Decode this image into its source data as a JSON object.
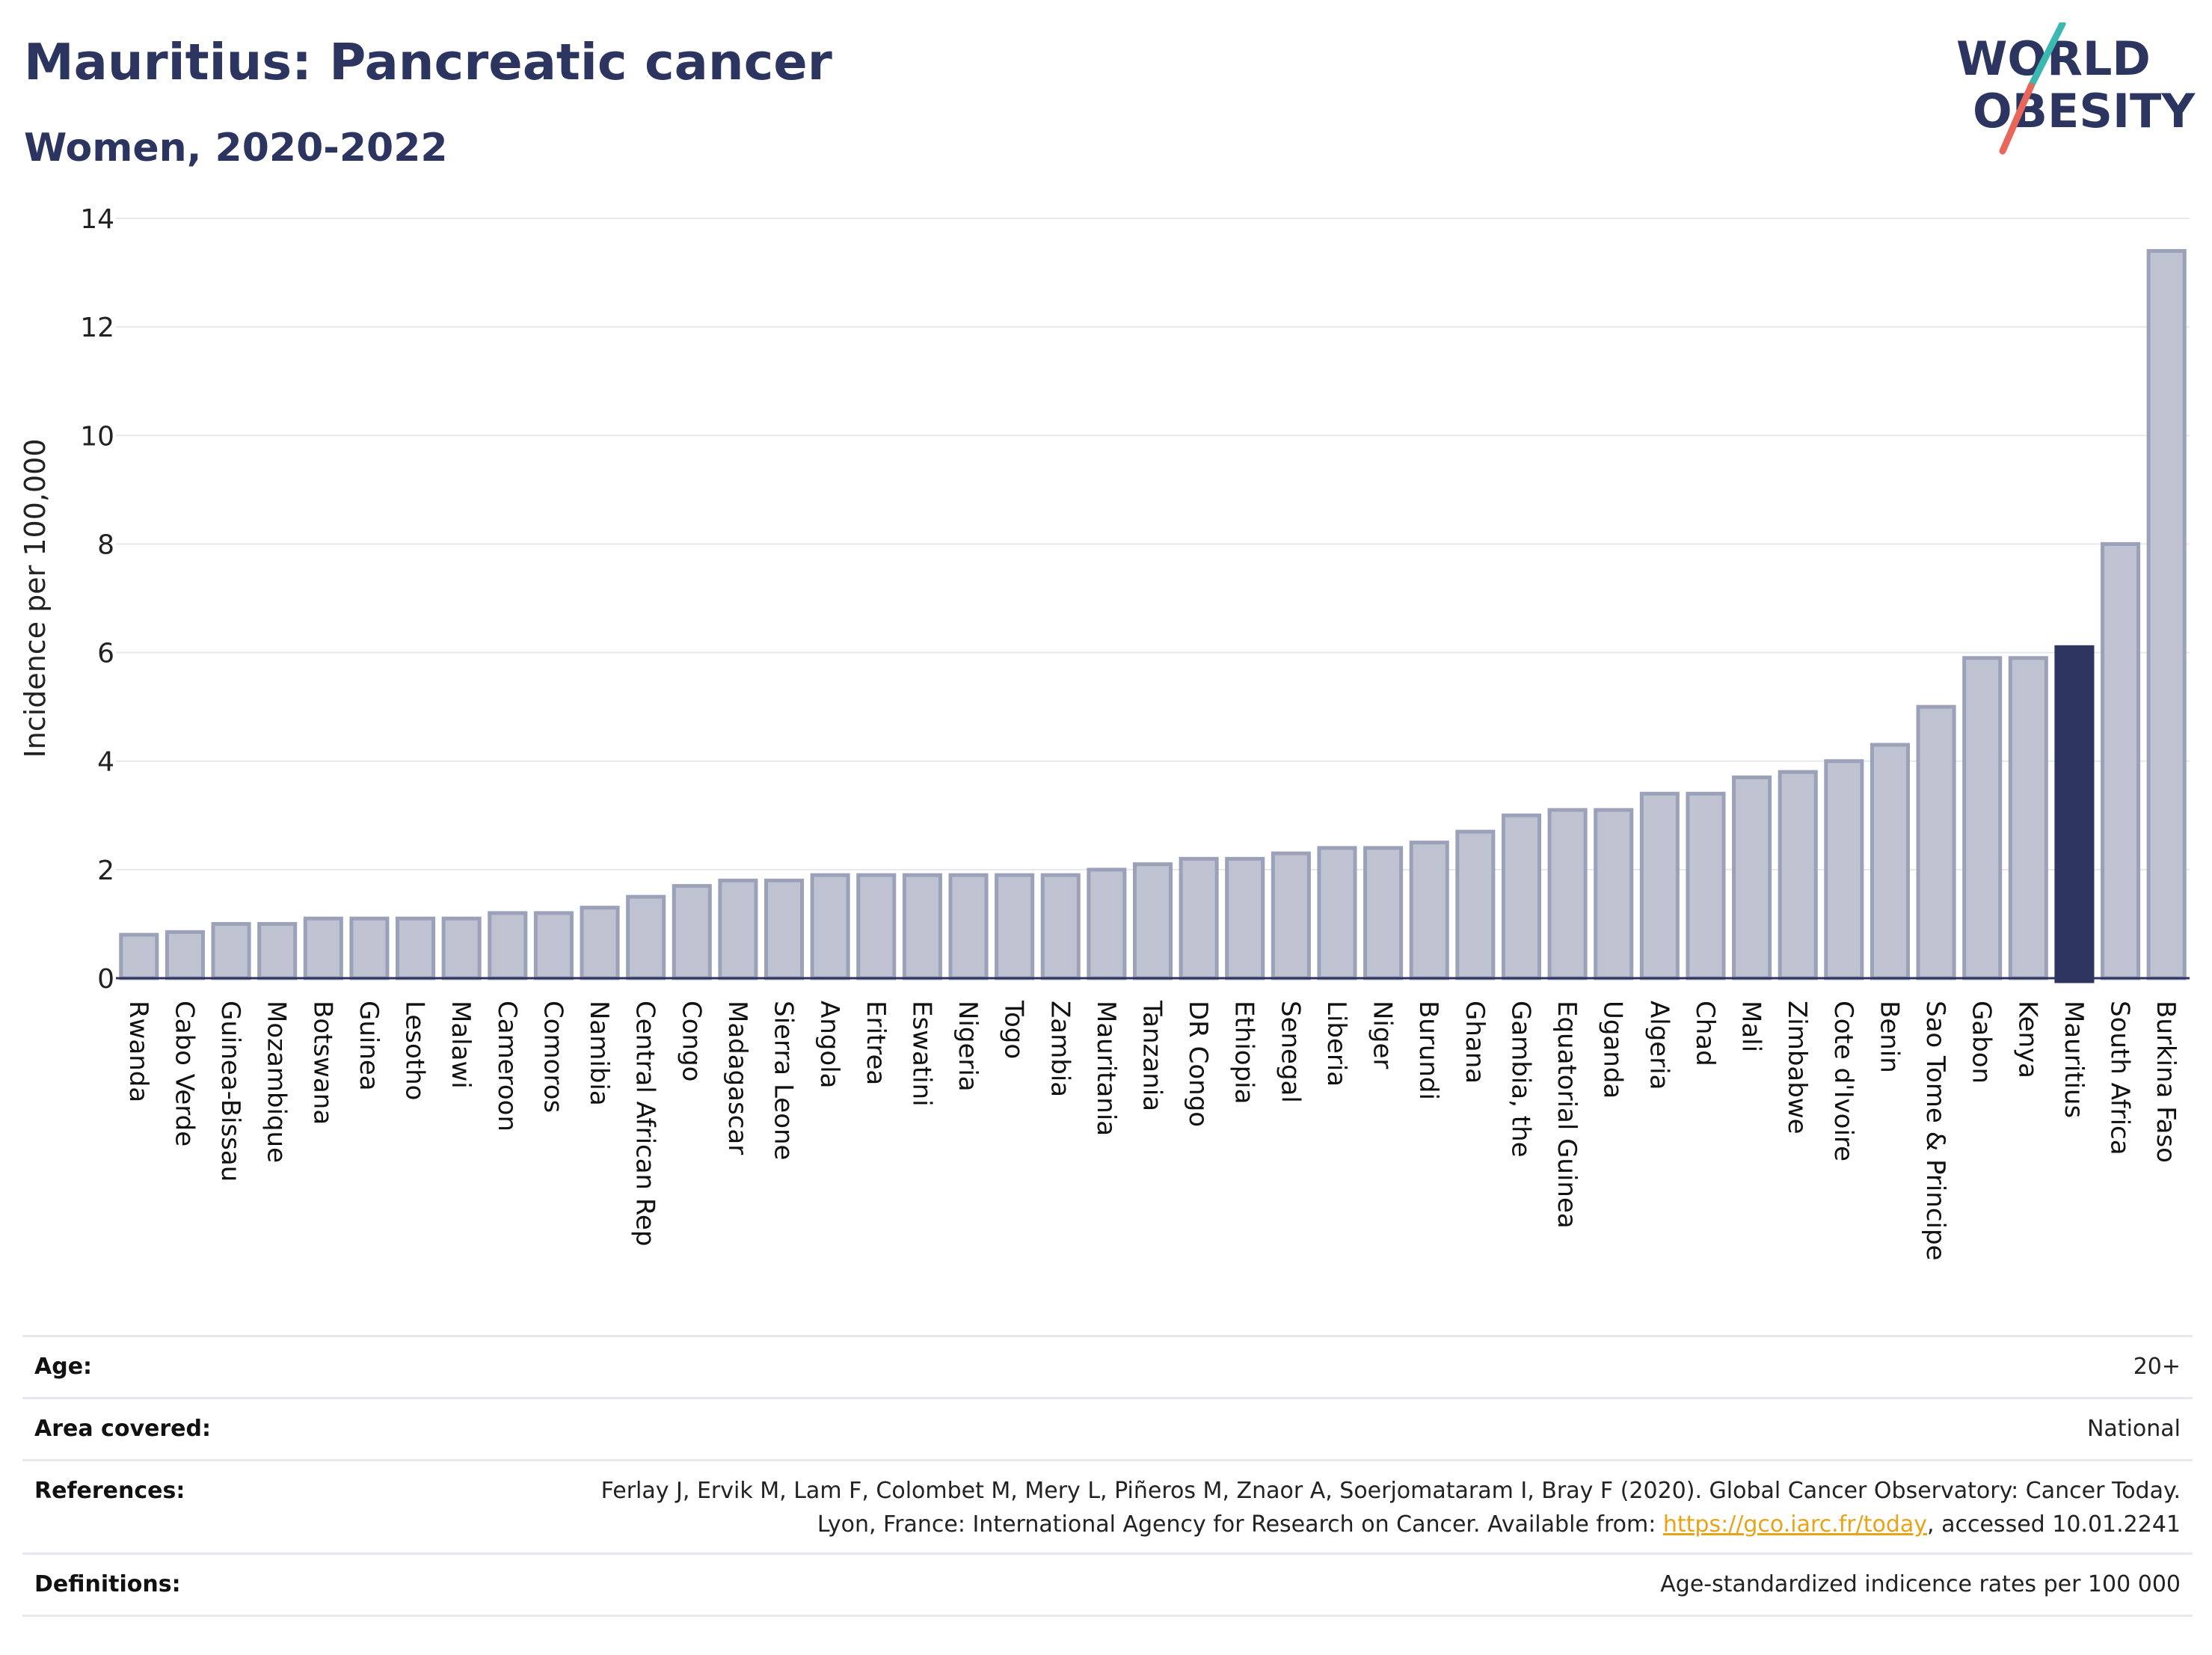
{
  "header": {
    "title": "Mauritius: Pancreatic cancer",
    "subtitle": "Women, 2020-2022"
  },
  "logo": {
    "line1": "WORLD",
    "line2": "OBESITY"
  },
  "colors": {
    "text": "#2c3560",
    "bar": "#bfc3d1",
    "bar_stroke": "#9ba1b8",
    "highlight": "#2c3560",
    "grid": "#e6e8ef",
    "link": "#e8a317",
    "logo_teal": "#3bb8b0",
    "logo_red": "#e8675a"
  },
  "chart_data": {
    "type": "bar",
    "ylabel": "Incidence per 100,000",
    "ylim": [
      0,
      14
    ],
    "yticks": [
      0,
      2,
      4,
      6,
      8,
      10,
      12,
      14
    ],
    "highlight": "Mauritius",
    "grid": true,
    "categories": [
      "Rwanda",
      "Cabo Verde",
      "Guinea-Bissau",
      "Mozambique",
      "Botswana",
      "Guinea",
      "Lesotho",
      "Malawi",
      "Cameroon",
      "Comoros",
      "Namibia",
      "Central African Rep",
      "Congo",
      "Madagascar",
      "Sierra Leone",
      "Angola",
      "Eritrea",
      "Eswatini",
      "Nigeria",
      "Togo",
      "Zambia",
      "Mauritania",
      "Tanzania",
      "DR Congo",
      "Ethiopia",
      "Senegal",
      "Liberia",
      "Niger",
      "Burundi",
      "Ghana",
      "Gambia, the",
      "Equatorial Guinea",
      "Uganda",
      "Algeria",
      "Chad",
      "Mali",
      "Zimbabwe",
      "Cote d'Ivoire",
      "Benin",
      "Sao Tome & Principe",
      "Gabon",
      "Kenya",
      "Mauritius",
      "South Africa",
      "Burkina Faso"
    ],
    "values": [
      0.8,
      0.85,
      1.0,
      1.0,
      1.1,
      1.1,
      1.1,
      1.1,
      1.2,
      1.2,
      1.3,
      1.5,
      1.7,
      1.8,
      1.8,
      1.9,
      1.9,
      1.9,
      1.9,
      1.9,
      1.9,
      2.0,
      2.1,
      2.2,
      2.2,
      2.3,
      2.4,
      2.4,
      2.5,
      2.7,
      3.0,
      3.1,
      3.1,
      3.4,
      3.4,
      3.7,
      3.8,
      4.0,
      4.3,
      5.0,
      5.9,
      5.9,
      6.1,
      8.0,
      13.4
    ]
  },
  "meta": [
    {
      "label": "Age:",
      "value": "20+"
    },
    {
      "label": "Area covered:",
      "value": "National"
    },
    {
      "label": "References:",
      "value_before": "Ferlay J, Ervik M, Lam F, Colombet M, Mery L, Piñeros M, Znaor A, Soerjomataram I, Bray F (2020). Global Cancer Observatory: Cancer Today. Lyon, France: International Agency for Research on Cancer. Available from: ",
      "link": "https://gco.iarc.fr/today",
      "value_after": ", accessed 10.01.2241"
    },
    {
      "label": "Definitions:",
      "value": "Age-standardized indicence rates per 100 000"
    }
  ]
}
